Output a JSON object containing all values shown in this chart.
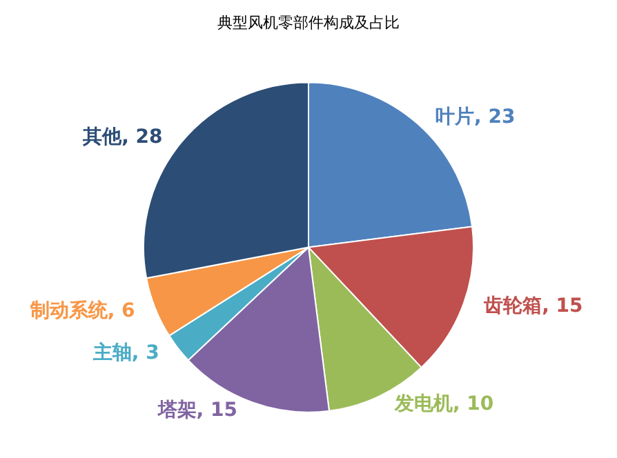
{
  "chart_data": {
    "type": "pie",
    "title": "典型风机零部件构成及占比",
    "categories": [
      "叶片",
      "齿轮箱",
      "发电机",
      "塔架",
      "主轴",
      "制动系统",
      "其他"
    ],
    "values": [
      23,
      15,
      10,
      15,
      3,
      6,
      28
    ],
    "colors": [
      "#4f81bd",
      "#c0504d",
      "#9bbb59",
      "#8064a2",
      "#4bacc6",
      "#f79646",
      "#2c4d75"
    ],
    "value_labels": [
      ", 23",
      ", 15",
      ", 10",
      ", 15",
      ", 3",
      ", 6",
      ", 28"
    ],
    "legend": false
  }
}
